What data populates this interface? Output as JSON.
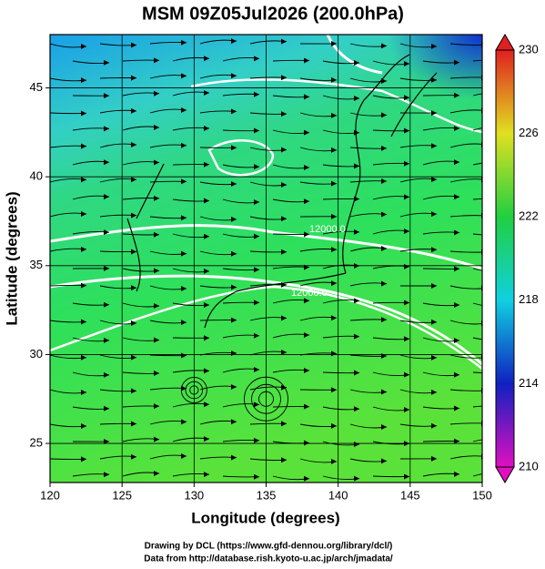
{
  "map": {
    "title": "MSM 09Z05Jul2026 (200.0hPa)",
    "xlabel": "Longitude (degrees)",
    "ylabel": "Latitude  (degrees)",
    "xlim": [
      120,
      150
    ],
    "xticks": [
      120,
      125,
      130,
      135,
      140,
      145,
      150
    ],
    "ylim": [
      22.8,
      48
    ],
    "yticks": [
      25,
      30,
      35,
      40,
      45
    ],
    "colorbar": {
      "lim": [
        210,
        230
      ],
      "ticks": [
        210,
        214,
        218,
        222,
        226,
        230
      ]
    },
    "contour_labels": [
      "12000.0",
      "12000.0"
    ],
    "footer": [
      "Drawing by DCL (https://www.gfd-dennou.org/library/dcl/)",
      "Data from http://database.rish.kyoto-u.ac.jp/arch/jmadata/"
    ]
  }
}
